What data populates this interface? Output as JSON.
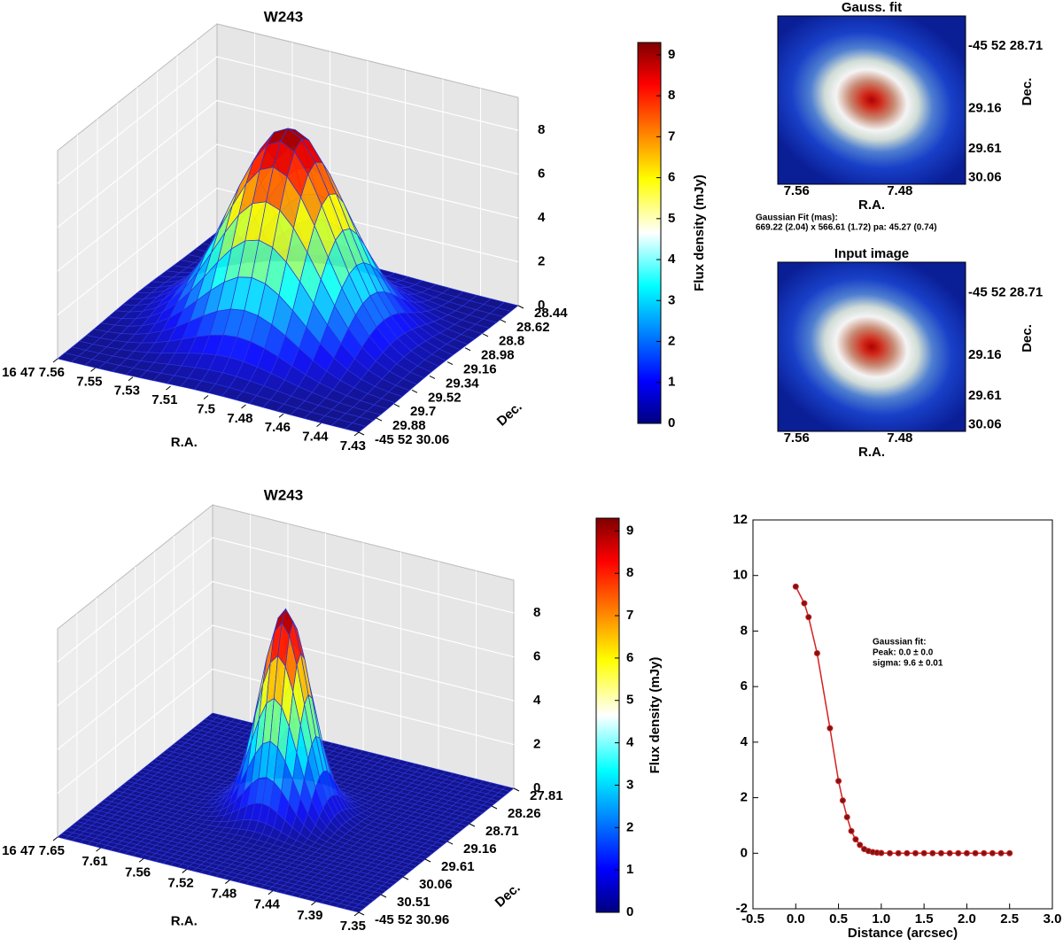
{
  "chart_data": [
    {
      "type": "surface",
      "title": "W243",
      "xlabel": "R.A.",
      "ylabel": "Dec.",
      "xtick_labels": [
        "16 47 7.56",
        "7.55",
        "7.53",
        "7.51",
        "7.5",
        "7.48",
        "7.46",
        "7.44",
        "7.43"
      ],
      "ytick_labels": [
        "-45 52 30.06",
        "29.88",
        "29.7",
        "29.52",
        "29.34",
        "29.16",
        "28.98",
        "28.8",
        "28.62",
        "28.44"
      ],
      "zlim": [
        0,
        9.5
      ],
      "zticks": [
        0,
        2,
        4,
        6,
        8
      ],
      "colorbar": {
        "label": "Flux density (mJy)",
        "clim": [
          0,
          9.3
        ],
        "ticks": [
          0,
          1,
          2,
          3,
          4,
          5,
          6,
          7,
          8,
          9
        ]
      }
    },
    {
      "type": "surface",
      "title": "W243",
      "xlabel": "R.A.",
      "ylabel": "Dec.",
      "xtick_labels": [
        "16 47 7.65",
        "7.61",
        "7.56",
        "7.52",
        "7.48",
        "7.44",
        "7.39",
        "7.35"
      ],
      "ytick_labels": [
        "-45 52 30.96",
        "30.51",
        "30.06",
        "29.61",
        "29.16",
        "28.71",
        "28.26",
        "27.81"
      ],
      "zlim": [
        0,
        9.5
      ],
      "zticks": [
        0,
        2,
        4,
        6,
        8
      ],
      "colorbar": {
        "label": "Flux density (mJy)",
        "clim": [
          0,
          9.3
        ],
        "ticks": [
          0,
          1,
          2,
          3,
          4,
          5,
          6,
          7,
          8,
          9
        ]
      }
    },
    {
      "type": "image",
      "title": "Gauss. fit",
      "xlabel": "R.A.",
      "ylabel": "Dec.",
      "xtick_labels": [
        "7.56",
        "7.48"
      ],
      "ytick_labels": [
        "-45 52 28.71",
        "29.16",
        "29.61",
        "30.06"
      ],
      "annotation": [
        "Gaussian Fit (mas):",
        "669.22 (2.04) x 566.61 (1.72) pa: 45.27 (0.74)"
      ]
    },
    {
      "type": "image",
      "title": "Input image",
      "xlabel": "R.A.",
      "ylabel": "Dec.",
      "xtick_labels": [
        "7.56",
        "7.48"
      ],
      "ytick_labels": [
        "-45 52 28.71",
        "29.16",
        "29.61",
        "30.06"
      ]
    },
    {
      "type": "line",
      "xlabel": "Distance (arcsec)",
      "annotation": [
        "Gaussian fit:",
        "Peak: 0.0 ± 0.0",
        "sigma: 9.6 ± 0.01"
      ],
      "xlim": [
        -0.5,
        3
      ],
      "ylim": [
        -2,
        12
      ],
      "xticks": [
        -0.5,
        {
          "value": 0,
          "label": "0.0"
        },
        0.5,
        {
          "value": 1,
          "label": "1.0"
        },
        1.5,
        {
          "value": 2,
          "label": "2.0"
        },
        2.5,
        {
          "value": 3,
          "label": "3.0"
        }
      ],
      "yticks": [
        -2,
        0,
        2,
        4,
        6,
        8,
        10,
        12
      ],
      "line_color": "#d42020",
      "marker_color": "#7a1515",
      "x": [
        0,
        0.1,
        0.15,
        0.25,
        0.4,
        0.5,
        0.55,
        0.6,
        0.65,
        0.7,
        0.75,
        0.8,
        0.85,
        0.9,
        0.95,
        1.0,
        1.1,
        1.2,
        1.3,
        1.4,
        1.5,
        1.6,
        1.7,
        1.8,
        1.9,
        2.0,
        2.1,
        2.2,
        2.3,
        2.4,
        2.5
      ],
      "y": [
        9.6,
        9.0,
        8.5,
        7.2,
        4.5,
        2.6,
        1.9,
        1.3,
        0.8,
        0.5,
        0.3,
        0.15,
        0.08,
        0.04,
        0.02,
        0.01,
        0,
        0,
        0,
        0,
        0,
        0,
        0,
        0,
        0,
        0,
        0,
        0,
        0,
        0,
        0
      ]
    }
  ]
}
